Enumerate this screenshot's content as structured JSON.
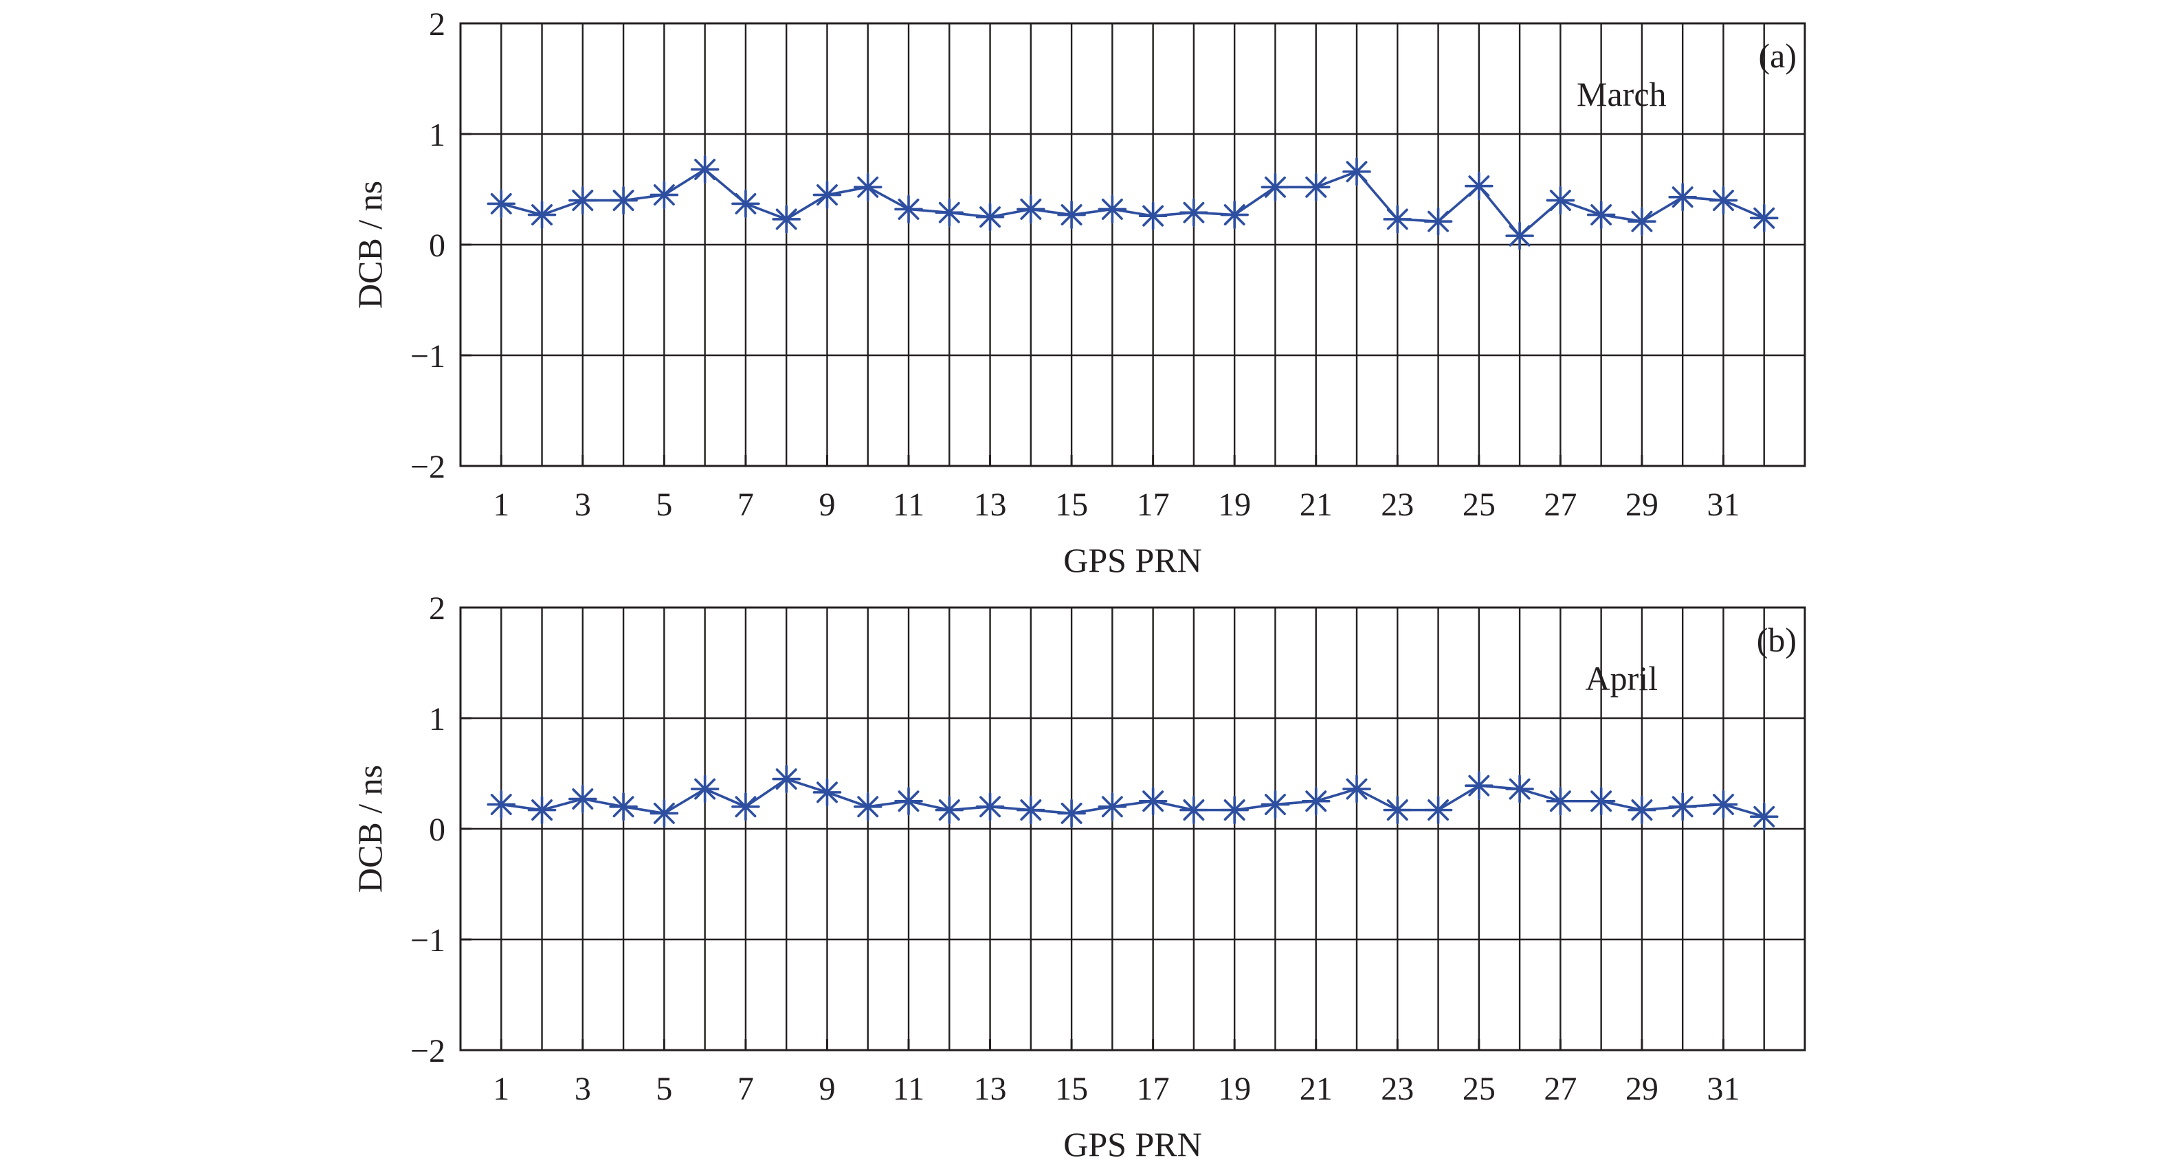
{
  "chart_data": [
    {
      "type": "line",
      "panel_tag": "(a)",
      "annotation": "March",
      "xlabel": "GPS PRN",
      "ylabel": "DCB / ns",
      "ylim": [
        -2,
        2
      ],
      "yticks": [
        -2,
        -1,
        0,
        1,
        2
      ],
      "ytick_labels": [
        "−2",
        "−1",
        "0",
        "1",
        "2"
      ],
      "xlim": [
        0,
        33
      ],
      "xticks": [
        1,
        3,
        5,
        7,
        9,
        11,
        13,
        15,
        17,
        19,
        21,
        23,
        25,
        27,
        29,
        31
      ],
      "grid": true,
      "marker": "asterisk",
      "color": "#2e4fa0",
      "x": [
        1,
        2,
        3,
        4,
        5,
        6,
        7,
        8,
        9,
        10,
        11,
        12,
        13,
        14,
        15,
        16,
        17,
        18,
        19,
        20,
        21,
        22,
        23,
        24,
        25,
        26,
        27,
        28,
        29,
        30,
        31,
        32
      ],
      "values": [
        0.37,
        0.27,
        0.4,
        0.4,
        0.45,
        0.68,
        0.37,
        0.23,
        0.45,
        0.52,
        0.32,
        0.29,
        0.25,
        0.32,
        0.27,
        0.32,
        0.26,
        0.29,
        0.27,
        0.52,
        0.52,
        0.66,
        0.23,
        0.21,
        0.53,
        0.08,
        0.4,
        0.27,
        0.21,
        0.43,
        0.4,
        0.24
      ]
    },
    {
      "type": "line",
      "panel_tag": "(b)",
      "annotation": "April",
      "xlabel": "GPS PRN",
      "ylabel": "DCB / ns",
      "ylim": [
        -2,
        2
      ],
      "yticks": [
        -2,
        -1,
        0,
        1,
        2
      ],
      "ytick_labels": [
        "−2",
        "−1",
        "0",
        "1",
        "2"
      ],
      "xlim": [
        0,
        33
      ],
      "xticks": [
        1,
        3,
        5,
        7,
        9,
        11,
        13,
        15,
        17,
        19,
        21,
        23,
        25,
        27,
        29,
        31
      ],
      "grid": true,
      "marker": "asterisk",
      "color": "#2e4fa0",
      "x": [
        1,
        2,
        3,
        4,
        5,
        6,
        7,
        8,
        9,
        10,
        11,
        12,
        13,
        14,
        15,
        16,
        17,
        18,
        19,
        20,
        21,
        22,
        23,
        24,
        25,
        26,
        27,
        28,
        29,
        30,
        31,
        32
      ],
      "values": [
        0.22,
        0.17,
        0.27,
        0.2,
        0.14,
        0.36,
        0.2,
        0.45,
        0.33,
        0.2,
        0.25,
        0.17,
        0.2,
        0.17,
        0.14,
        0.2,
        0.25,
        0.17,
        0.17,
        0.22,
        0.25,
        0.36,
        0.17,
        0.17,
        0.39,
        0.36,
        0.25,
        0.25,
        0.17,
        0.2,
        0.22,
        0.11
      ]
    }
  ]
}
